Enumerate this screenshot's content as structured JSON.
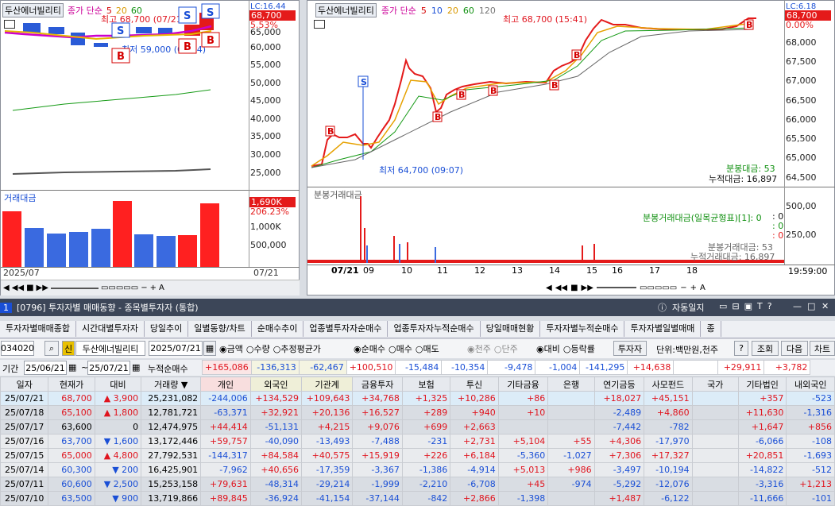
{
  "left_chart": {
    "symbol": "두산에너빌리티",
    "ma_label": "종가 단순",
    "ma": [
      "5",
      "20",
      "60"
    ],
    "high_label": "최고 68,700 (07/21)",
    "low_label": "최저 59,000 (07/14)",
    "price_badge": "68,700",
    "pct_badge": "5.53%",
    "lc_label": "LC:16.44",
    "y_ticks": [
      "65,000",
      "60,000",
      "55,000",
      "50,000",
      "45,000",
      "40,000",
      "35,000",
      "30,000",
      "25,000"
    ],
    "vol_title": "거래대금",
    "vol_badge": "1,690K",
    "vol_pct": "206.23%",
    "vol_ticks": [
      "1,000K",
      "500,000"
    ],
    "x_start": "2025/07",
    "x_end": "07/21"
  },
  "right_chart": {
    "symbol": "두산에너빌리티",
    "ma_label": "종가 단순",
    "ma": [
      "5",
      "10",
      "20",
      "60",
      "120"
    ],
    "high_label": "최고 68,700 (15:41)",
    "low_label": "최저 64,700 (09:07)",
    "price_badge": "68,700",
    "pct_badge": "0.00%",
    "lc_label": "LC:6.18",
    "y_ticks": [
      "68,000",
      "67,500",
      "67,000",
      "66,500",
      "66,000",
      "65,500",
      "65,000",
      "64,500"
    ],
    "min_amount_label": "분봉대금: 53",
    "cum_amount_label": "누적대금: 16,897",
    "vol_title": "분봉거래대금",
    "vol_ticks": [
      "500,00",
      "250,00"
    ],
    "vol_legend": [
      "분봉거래대금(일목균형표)[1]: 0",
      "분봉거래대금: 53",
      "누적거래대금: 16,897"
    ],
    "vol_zero": [
      ": 0",
      ": 0",
      ": 0"
    ],
    "x_ticks": [
      "07/21",
      "09",
      "10",
      "11",
      "12",
      "13",
      "14",
      "15",
      "16",
      "17",
      "18"
    ],
    "time": "19:59:00"
  },
  "window": {
    "num": "1",
    "title": "[0796] 투자자별 매매동향 - 종목별투자자 (통합)",
    "jado": "자동일지"
  },
  "tabs": [
    "투자자별매매종합",
    "시간대별투자자",
    "당일추이",
    "일별동향/차트",
    "순매수추이",
    "업종별투자자순매수",
    "업종투자자누적순매수",
    "당일매매현황",
    "투자자별누적순매수",
    "투자자별일별매매",
    "종"
  ],
  "controls": {
    "code": "034020",
    "sin": "신",
    "name": "두산에너빌리티",
    "date": "2025/07/21",
    "r1": [
      "금액",
      "수량",
      "추정평균가"
    ],
    "r2": [
      "순매수",
      "매수",
      "매도"
    ],
    "r3": [
      "천주",
      "단주"
    ],
    "r4": [
      "대비",
      "등락률"
    ],
    "investor_btn": "투자자",
    "unit": "단위:백만원,천주",
    "help": "?",
    "query": "조회",
    "next": "다음",
    "chart": "차트"
  },
  "period": {
    "label": "기간",
    "from": "25/06/21",
    "to": "25/07/21",
    "cum_label": "누적순매수",
    "cum": [
      "+165,086",
      "-136,313",
      "-62,467",
      "+100,510",
      "-15,484",
      "-10,354",
      "-9,478",
      "-1,004",
      "-141,295",
      "+14,638",
      "",
      "+29,911",
      "+3,782"
    ]
  },
  "table": {
    "headers": [
      "일자",
      "현재가",
      "대비",
      "거래량",
      "개인",
      "외국인",
      "기관계",
      "금융투자",
      "보험",
      "투신",
      "기타금융",
      "은행",
      "연기금등",
      "사모펀드",
      "국가",
      "기타법인",
      "내외국인"
    ],
    "rows": [
      [
        "25/07/21",
        "68,700",
        "▲",
        "3,900",
        "25,231,082",
        "-244,006",
        "+134,529",
        "+109,643",
        "+34,768",
        "+1,325",
        "+10,286",
        "+86",
        "",
        "+18,027",
        "+45,151",
        "",
        "+357",
        "-523"
      ],
      [
        "25/07/18",
        "65,100",
        "▲",
        "1,800",
        "12,781,721",
        "-63,371",
        "+32,921",
        "+20,136",
        "+16,527",
        "+289",
        "+940",
        "+10",
        "",
        "-2,489",
        "+4,860",
        "",
        "+11,630",
        "-1,316"
      ],
      [
        "25/07/17",
        "63,600",
        "",
        "0",
        "12,474,975",
        "+44,414",
        "-51,131",
        "+4,215",
        "+9,076",
        "+699",
        "+2,663",
        "",
        "",
        "-7,442",
        "-782",
        "",
        "+1,647",
        "+856"
      ],
      [
        "25/07/16",
        "63,700",
        "▼",
        "1,600",
        "13,172,446",
        "+59,757",
        "-40,090",
        "-13,493",
        "-7,488",
        "-231",
        "+2,731",
        "+5,104",
        "+55",
        "+4,306",
        "-17,970",
        "",
        "-6,066",
        "-108"
      ],
      [
        "25/07/15",
        "65,000",
        "▲",
        "4,800",
        "27,792,531",
        "-144,317",
        "+84,584",
        "+40,575",
        "+15,919",
        "+226",
        "+6,184",
        "-5,360",
        "-1,027",
        "+7,306",
        "+17,327",
        "",
        "+20,851",
        "-1,693"
      ],
      [
        "25/07/14",
        "60,300",
        "▼",
        "200",
        "16,425,901",
        "-7,962",
        "+40,656",
        "-17,359",
        "-3,367",
        "-1,386",
        "-4,914",
        "+5,013",
        "+986",
        "-3,497",
        "-10,194",
        "",
        "-14,822",
        "-512"
      ],
      [
        "25/07/11",
        "60,600",
        "▼",
        "2,500",
        "15,253,158",
        "+79,631",
        "-48,314",
        "-29,214",
        "-1,999",
        "-2,210",
        "-6,708",
        "+45",
        "-974",
        "-5,292",
        "-12,076",
        "",
        "-3,316",
        "+1,213"
      ],
      [
        "25/07/10",
        "63,500",
        "▼",
        "900",
        "13,719,866",
        "+89,845",
        "-36,924",
        "-41,154",
        "-37,144",
        "-842",
        "+2,866",
        "-1,398",
        "",
        "+1,487",
        "-6,122",
        "",
        "-11,666",
        "-101"
      ]
    ]
  }
}
